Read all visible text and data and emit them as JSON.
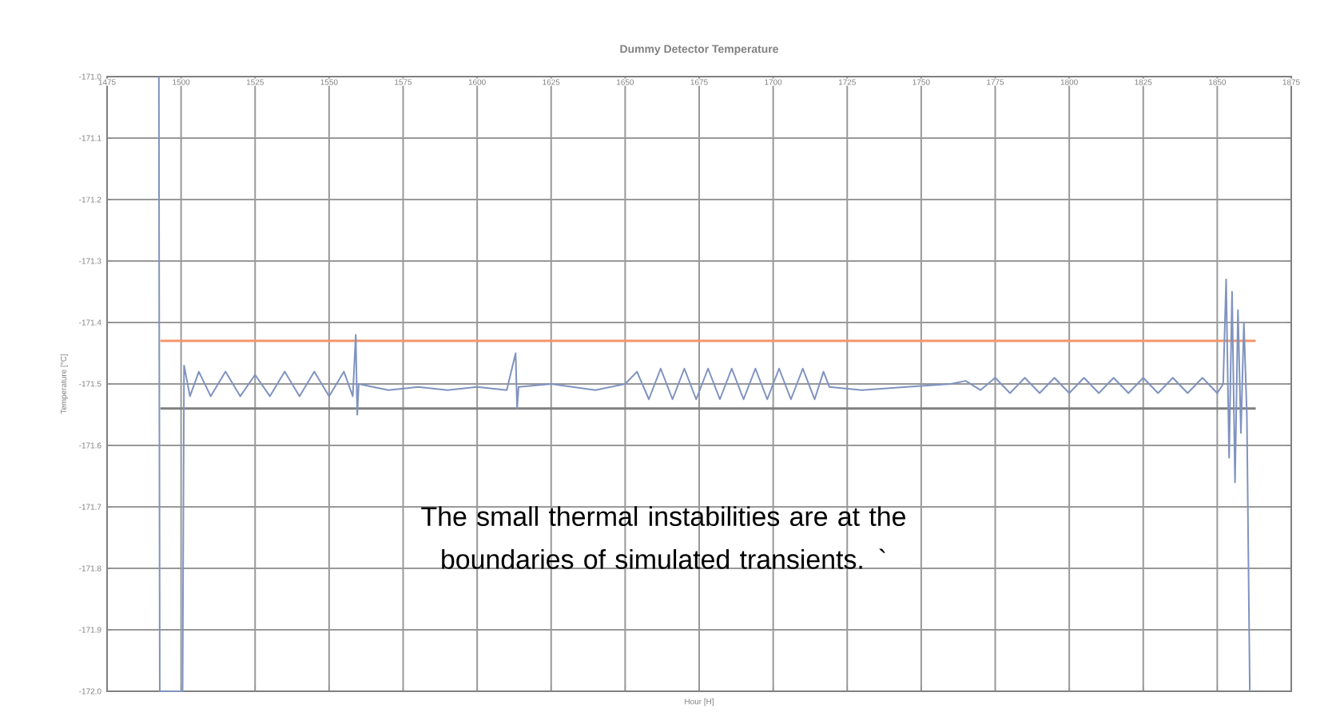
{
  "chart_data": {
    "type": "line",
    "title": "Dummy Detector Temperature",
    "xlabel": "Hour [H]",
    "ylabel": "Temperature [°C]",
    "annotations": [
      "The small thermal instabilities are at the boundaries of simulated transients. `"
    ],
    "xlim": [
      1475,
      1875
    ],
    "ylim": [
      -172,
      -171
    ],
    "xticks": [
      1475,
      1500,
      1525,
      1550,
      1575,
      1600,
      1625,
      1650,
      1675,
      1700,
      1725,
      1750,
      1775,
      1800,
      1825,
      1850,
      1875
    ],
    "yticks": [
      {
        "value": -172,
        "label": "-172.0"
      },
      -171.9,
      -171.8,
      -171.7,
      -171.6,
      -171.5,
      -171.4,
      -171.3,
      -171.2,
      -171.1,
      {
        "value": -171,
        "label": "-171.0"
      }
    ],
    "grid": true,
    "marker": "none",
    "line_style": "solid",
    "ref_lines": [
      {
        "axis": "y",
        "value": -171.43,
        "color": "#f4956a"
      },
      {
        "axis": "y",
        "value": -171.54,
        "color": "#808080"
      }
    ],
    "series": [
      {
        "color": "#7f93c0",
        "x": [
          1492.5,
          1492.8,
          1500.5,
          1501,
          1503,
          1506,
          1510,
          1515,
          1520,
          1525,
          1530,
          1535,
          1540,
          1545,
          1550,
          1555,
          1558,
          1559,
          1559.5,
          1560,
          1570,
          1580,
          1590,
          1600,
          1610,
          1613,
          1613.5,
          1614,
          1625,
          1640,
          1650,
          1654,
          1658,
          1662,
          1666,
          1670,
          1674,
          1678,
          1682,
          1686,
          1690,
          1694,
          1698,
          1702,
          1706,
          1710,
          1714,
          1717,
          1719,
          1730,
          1745,
          1760,
          1765,
          1770,
          1775,
          1780,
          1785,
          1790,
          1795,
          1800,
          1805,
          1810,
          1815,
          1820,
          1825,
          1830,
          1835,
          1840,
          1845,
          1850,
          1852,
          1853,
          1854,
          1855,
          1856,
          1857,
          1858,
          1859,
          1860,
          1861
        ],
        "values": [
          -171,
          -172,
          -172,
          -171.47,
          -171.52,
          -171.48,
          -171.52,
          -171.48,
          -171.52,
          -171.485,
          -171.52,
          -171.48,
          -171.52,
          -171.48,
          -171.52,
          -171.48,
          -171.52,
          -171.42,
          -171.55,
          -171.5,
          -171.51,
          -171.505,
          -171.51,
          -171.505,
          -171.51,
          -171.45,
          -171.54,
          -171.505,
          -171.5,
          -171.51,
          -171.5,
          -171.48,
          -171.525,
          -171.475,
          -171.525,
          -171.475,
          -171.525,
          -171.475,
          -171.525,
          -171.475,
          -171.525,
          -171.475,
          -171.525,
          -171.475,
          -171.525,
          -171.475,
          -171.525,
          -171.48,
          -171.505,
          -171.51,
          -171.505,
          -171.5,
          -171.495,
          -171.51,
          -171.49,
          -171.515,
          -171.49,
          -171.515,
          -171.49,
          -171.515,
          -171.49,
          -171.515,
          -171.49,
          -171.515,
          -171.49,
          -171.515,
          -171.49,
          -171.515,
          -171.49,
          -171.515,
          -171.5,
          -171.33,
          -171.62,
          -171.35,
          -171.66,
          -171.38,
          -171.58,
          -171.4,
          -171.55,
          -172
        ]
      }
    ]
  }
}
